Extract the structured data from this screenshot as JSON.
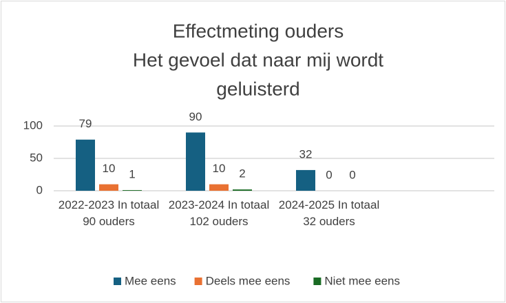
{
  "chart_data": {
    "type": "bar",
    "title": [
      "Effectmeting ouders",
      "Het gevoel dat naar mij wordt",
      "geluisterd"
    ],
    "categories": [
      "2022-2023 In totaal 90 ouders",
      "2023-2024 In totaal 102 ouders",
      "2024-2025 In totaal 32 ouders",
      null
    ],
    "series": [
      {
        "name": "Mee eens",
        "color": "#156082",
        "values": [
          79,
          90,
          32,
          null
        ]
      },
      {
        "name": "Deels mee eens",
        "color": "#e97132",
        "values": [
          10,
          10,
          0,
          null
        ]
      },
      {
        "name": "Niet mee eens",
        "color": "#196b24",
        "values": [
          1,
          2,
          0,
          null
        ]
      }
    ],
    "ylim": [
      0,
      100
    ],
    "yticks": [
      0,
      50,
      100
    ],
    "grid": true,
    "legend": "bottom"
  }
}
